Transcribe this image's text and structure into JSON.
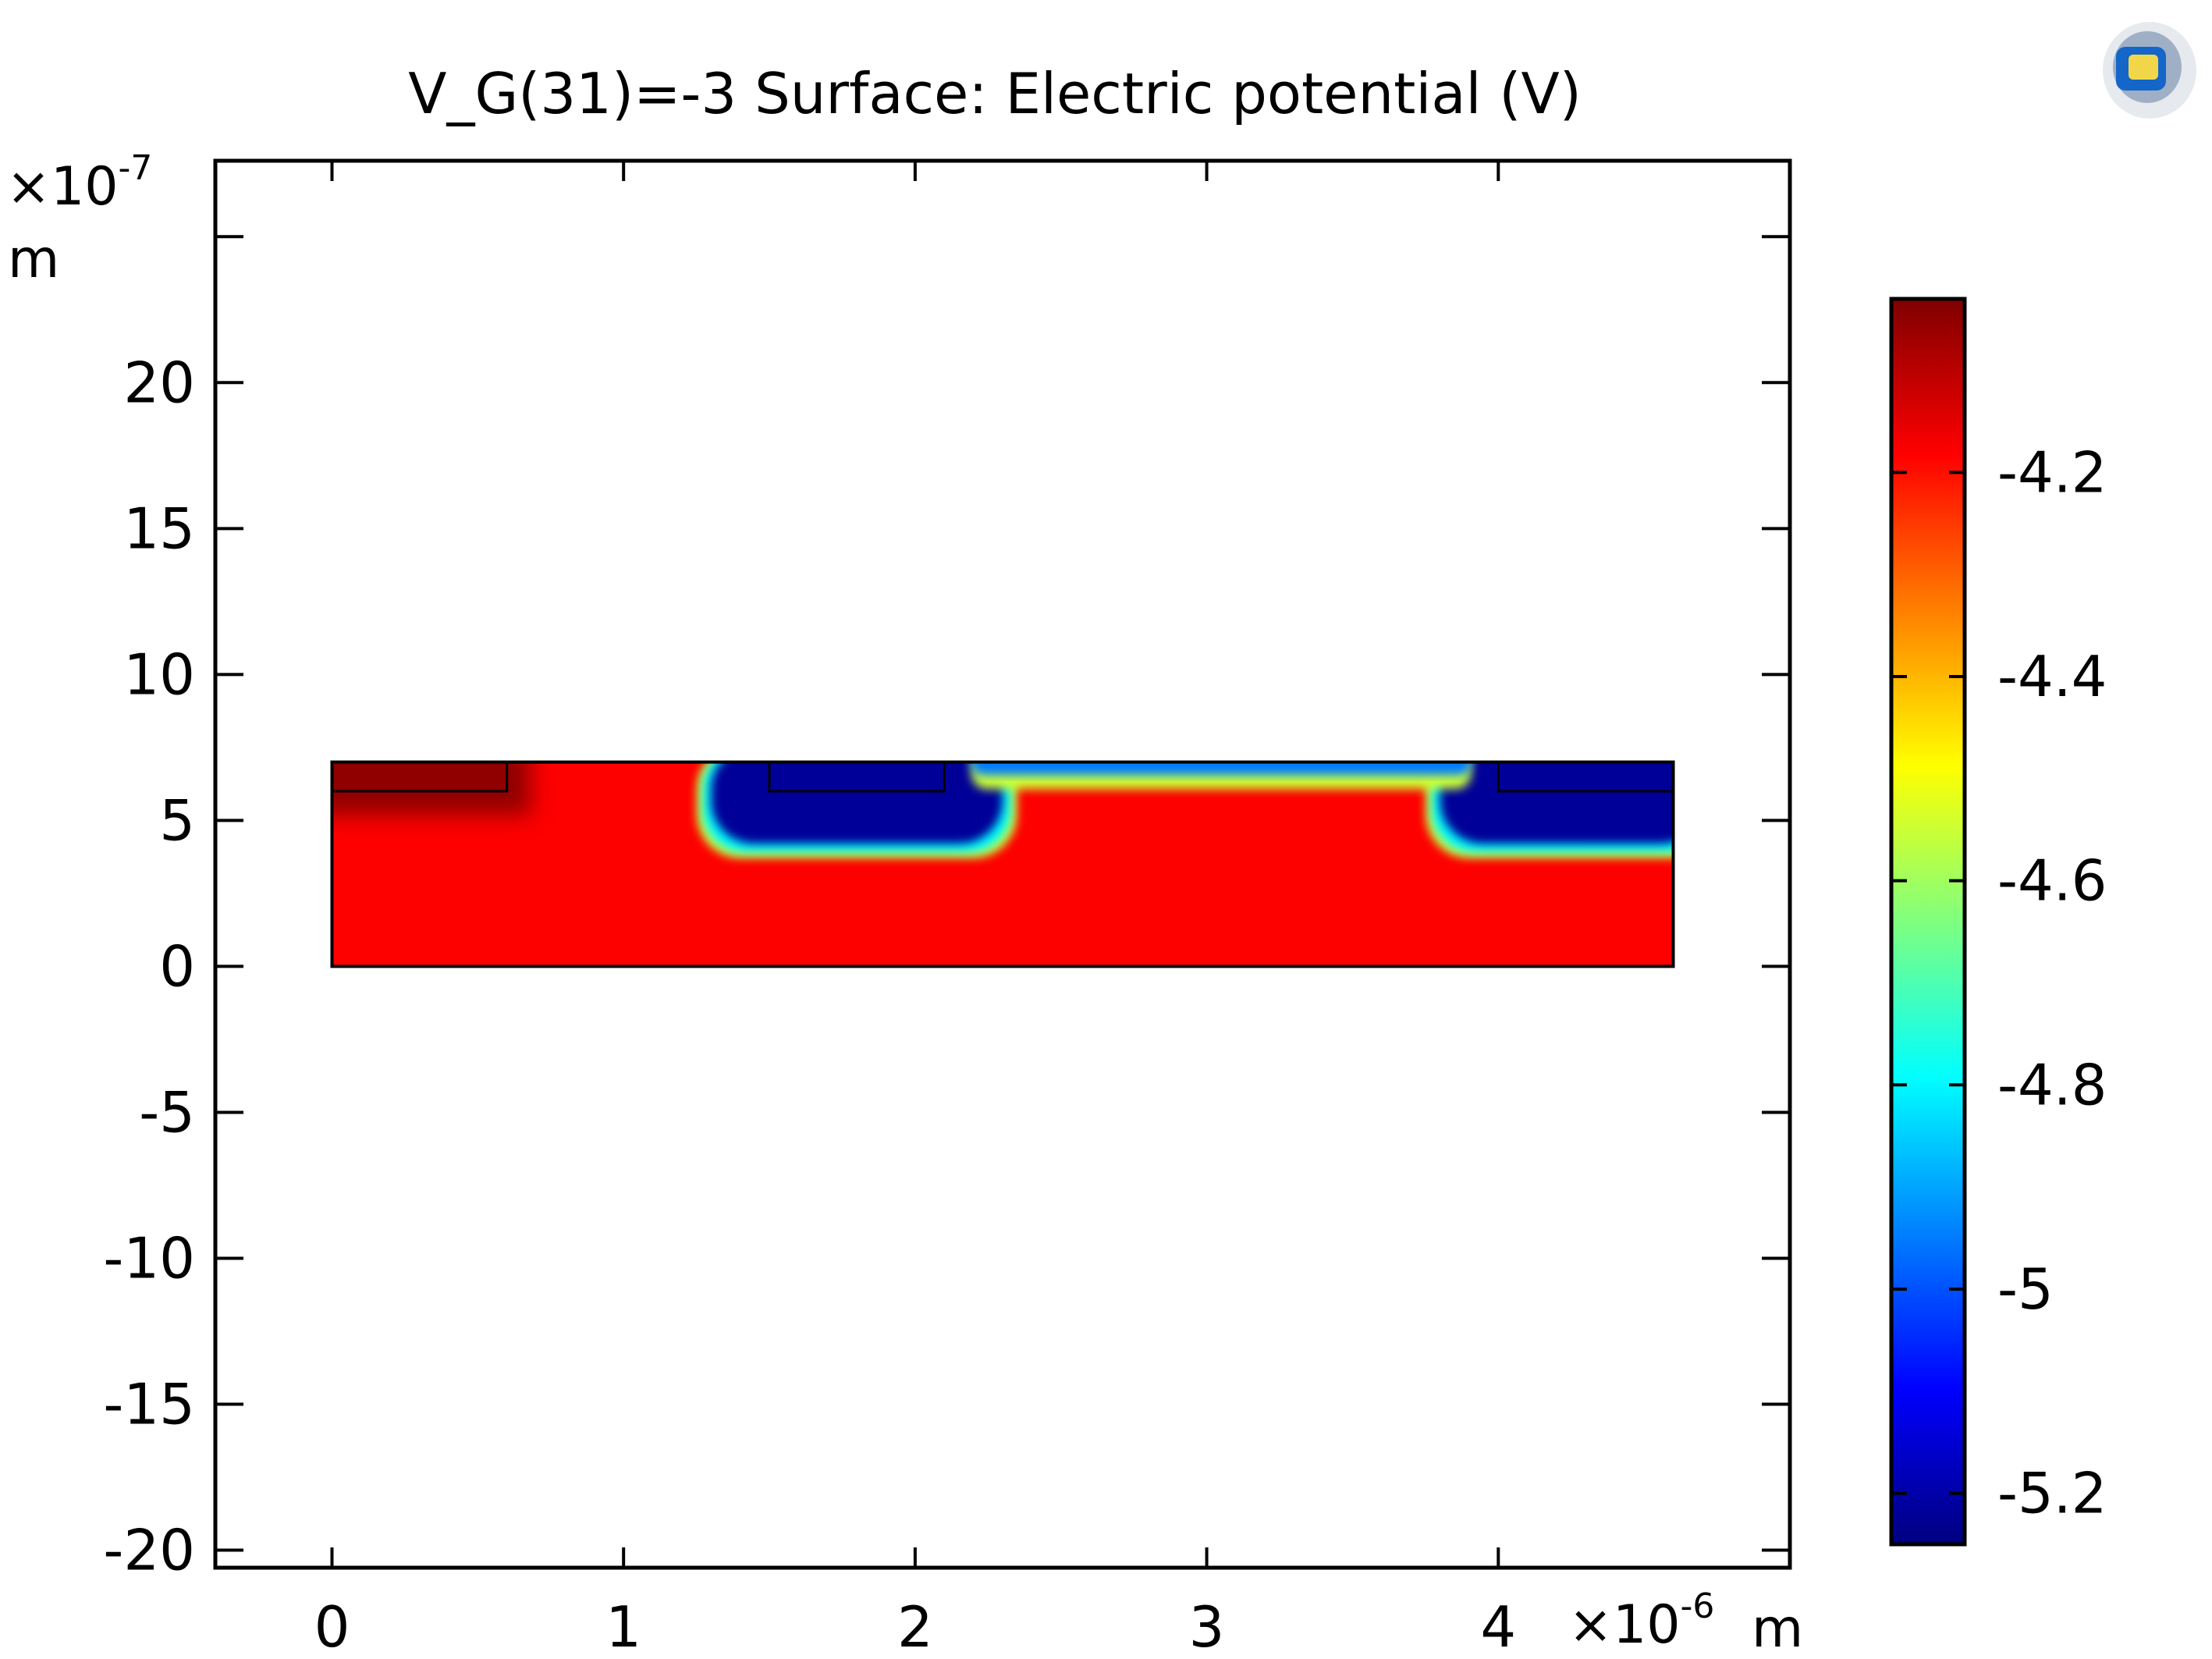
{
  "chart_data": {
    "type": "heatmap",
    "title": "V_G(31)=-3   Surface: Electric potential (V)",
    "x_axis": {
      "ticks": [
        "0",
        "1",
        "2",
        "3",
        "4"
      ],
      "tick_values": [
        0,
        1,
        2,
        3,
        4
      ],
      "multiplier": "×10",
      "exponent": "-6",
      "unit": "m",
      "range": [
        -0.4,
        5.0
      ]
    },
    "y_axis": {
      "ticks": [
        "20",
        "15",
        "10",
        "5",
        "0",
        "-5",
        "-10",
        "-15",
        "-20"
      ],
      "tick_values": [
        20,
        15,
        10,
        5,
        0,
        -5,
        -10,
        -15,
        -20
      ],
      "multiplier": "×10",
      "exponent": "-7",
      "unit": "m",
      "range": [
        -20.6,
        27.6
      ]
    },
    "colorbar": {
      "ticks": [
        "-4.2",
        "-4.4",
        "-4.6",
        "-4.8",
        "-5",
        "-5.2"
      ],
      "tick_values": [
        -4.2,
        -4.4,
        -4.6,
        -4.8,
        -5.0,
        -5.2
      ],
      "range": [
        -5.25,
        -4.03
      ],
      "colormap": "rainbow"
    },
    "geometry": {
      "domain": {
        "x": [
          0,
          4.6
        ],
        "y": [
          0,
          7
        ]
      },
      "boxes": [
        {
          "x": [
            0,
            0.6
          ],
          "y": [
            6,
            7
          ],
          "value": -4.05
        },
        {
          "x": [
            1.5,
            2.1
          ],
          "y": [
            6,
            7
          ],
          "value": -5.22
        },
        {
          "x": [
            4.0,
            4.6
          ],
          "y": [
            6,
            7
          ],
          "value": -5.22
        }
      ],
      "bulk_value": -4.18,
      "blue_wells": [
        {
          "x": [
            1.3,
            2.3
          ],
          "y_bottom": 4.2,
          "value": -5.22
        },
        {
          "x": [
            3.8,
            4.6
          ],
          "y_bottom": 4.2,
          "value": -5.22
        }
      ],
      "surface_channel": {
        "x": [
          2.3,
          3.8
        ],
        "y": [
          6.5,
          7
        ],
        "value": -4.95
      }
    }
  }
}
